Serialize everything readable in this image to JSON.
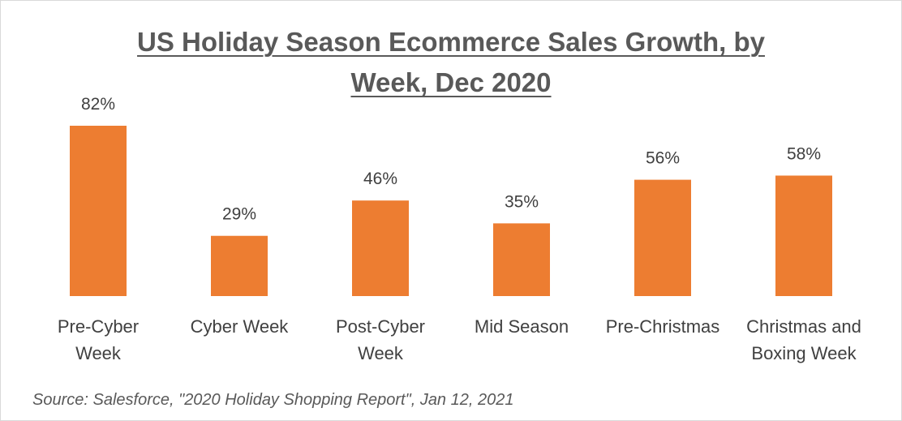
{
  "colors": {
    "bar": "#ed7d31",
    "title": "#595959",
    "text": "#404040"
  },
  "chart_data": {
    "type": "bar",
    "title_lines": [
      "US Holiday Season Ecommerce Sales Growth, by",
      "Week, Dec 2020"
    ],
    "categories": [
      [
        "Pre-Cyber",
        "Week"
      ],
      [
        "Cyber Week"
      ],
      [
        "Post-Cyber",
        "Week"
      ],
      [
        "Mid Season"
      ],
      [
        "Pre-Christmas"
      ],
      [
        "Christmas and",
        "Boxing Week"
      ]
    ],
    "values": [
      82,
      29,
      46,
      35,
      56,
      58
    ],
    "value_labels": [
      "82%",
      "29%",
      "46%",
      "35%",
      "56%",
      "58%"
    ],
    "unit": "%",
    "ylim": [
      0,
      82
    ],
    "grid": false,
    "legend": "none",
    "source": "Source: Salesforce, \"2020 Holiday Shopping Report\", Jan 12, 2021"
  }
}
